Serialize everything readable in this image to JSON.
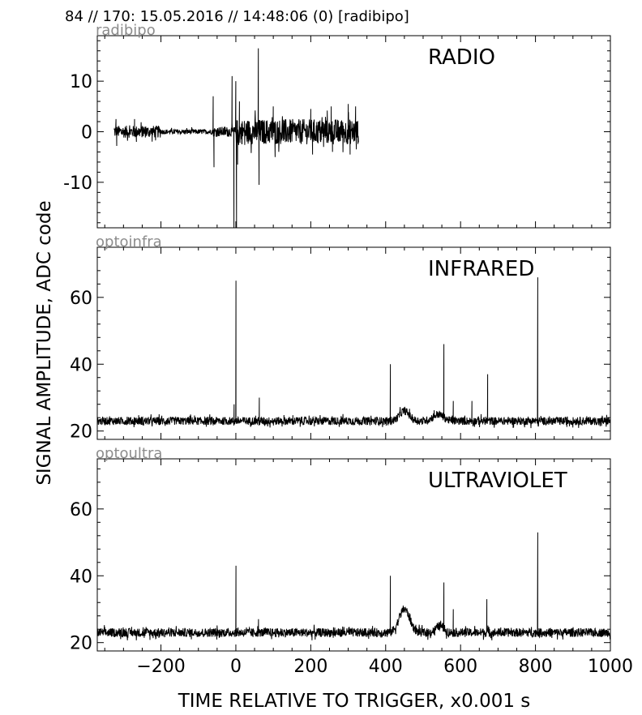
{
  "header": "84 // 170:   15.05.2016 // 14:48:06 (0)  [radibipo]",
  "ylabel": "SIGNAL AMPLITUDE,  ADC code",
  "xlabel": "TIME RELATIVE TO TRIGGER,   x0.001 s",
  "colors": {
    "trace": "#000000",
    "tag": "#8c8c8c",
    "axes": "#000000"
  },
  "chart_data": [
    {
      "type": "line",
      "tag": "radibipo",
      "title": "RADIO",
      "xlim": [
        -370,
        1000
      ],
      "ylim": [
        -19,
        19
      ],
      "yticks": [
        10,
        0,
        -10
      ],
      "xticks": [
        -200,
        0,
        200,
        400,
        600,
        800,
        1000
      ],
      "show_xtick_labels": false,
      "baseline": 0,
      "noise": {
        "from": -325,
        "to": 328,
        "segments": [
          {
            "from": -325,
            "to": -200,
            "amp": 1.2
          },
          {
            "from": -200,
            "to": -60,
            "amp": 0.5
          },
          {
            "from": -60,
            "to": 0,
            "amp": 1.0
          },
          {
            "from": 0,
            "to": 328,
            "amp": 2.5
          }
        ]
      },
      "spikes": [
        {
          "x": -320,
          "y": 2.5
        },
        {
          "x": -318,
          "y": -2.8
        },
        {
          "x": -270,
          "y": 2.5
        },
        {
          "x": -265,
          "y": -2
        },
        {
          "x": -60,
          "y": 7
        },
        {
          "x": -58,
          "y": -7
        },
        {
          "x": -10,
          "y": 11
        },
        {
          "x": -5,
          "y": -19
        },
        {
          "x": 0,
          "y": 10
        },
        {
          "x": 2,
          "y": -19
        },
        {
          "x": 5,
          "y": -6.5
        },
        {
          "x": 10,
          "y": 6
        },
        {
          "x": 60,
          "y": 16.5
        },
        {
          "x": 62,
          "y": -10.5
        },
        {
          "x": 100,
          "y": 5
        },
        {
          "x": 105,
          "y": -5
        },
        {
          "x": 200,
          "y": 4.5
        },
        {
          "x": 205,
          "y": -4.5
        },
        {
          "x": 255,
          "y": 5
        },
        {
          "x": 258,
          "y": -4
        },
        {
          "x": 300,
          "y": 5.5
        },
        {
          "x": 305,
          "y": -4.5
        },
        {
          "x": 320,
          "y": 5
        },
        {
          "x": 322,
          "y": -3.5
        }
      ]
    },
    {
      "type": "line",
      "tag": "optoinfra",
      "title": "INFRARED",
      "xlim": [
        -370,
        1000
      ],
      "ylim": [
        17.5,
        75
      ],
      "yticks": [
        60,
        40,
        20
      ],
      "xticks": [
        -200,
        0,
        200,
        400,
        600,
        800,
        1000
      ],
      "show_xtick_labels": false,
      "baseline": 23,
      "noise": {
        "from": -370,
        "to": 1000,
        "amp": 1.2
      },
      "bumps": [
        {
          "center": 450,
          "width": 18,
          "height": 3
        },
        {
          "center": 540,
          "width": 20,
          "height": 2
        }
      ],
      "spikes": [
        {
          "x": -5,
          "y": 28
        },
        {
          "x": 0,
          "y": 65
        },
        {
          "x": 62,
          "y": 30
        },
        {
          "x": 412,
          "y": 40
        },
        {
          "x": 555,
          "y": 46
        },
        {
          "x": 580,
          "y": 29
        },
        {
          "x": 630,
          "y": 29
        },
        {
          "x": 672,
          "y": 37
        },
        {
          "x": 806,
          "y": 66
        }
      ]
    },
    {
      "type": "line",
      "tag": "optoultra",
      "title": "ULTRAVIOLET",
      "xlim": [
        -370,
        1000
      ],
      "ylim": [
        17.5,
        75
      ],
      "yticks": [
        60,
        40,
        20
      ],
      "xticks": [
        -200,
        0,
        200,
        400,
        600,
        800,
        1000
      ],
      "show_xtick_labels": true,
      "baseline": 23,
      "noise": {
        "from": -370,
        "to": 1000,
        "amp": 1.3
      },
      "bumps": [
        {
          "center": 450,
          "width": 20,
          "height": 7
        },
        {
          "center": 545,
          "width": 15,
          "height": 2
        }
      ],
      "spikes": [
        {
          "x": 0,
          "y": 43
        },
        {
          "x": 60,
          "y": 27
        },
        {
          "x": 412,
          "y": 40
        },
        {
          "x": 555,
          "y": 38
        },
        {
          "x": 580,
          "y": 30
        },
        {
          "x": 670,
          "y": 33
        },
        {
          "x": 806,
          "y": 53
        }
      ]
    }
  ]
}
